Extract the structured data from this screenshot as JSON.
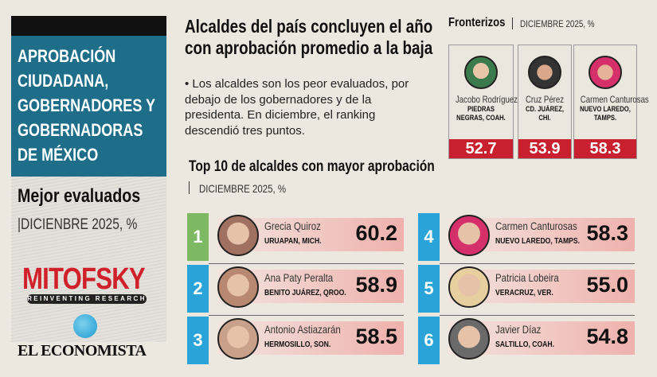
{
  "left_panel": {
    "title_lines": [
      "APROBACIÓN",
      "CIUDADANA,",
      "GOBERNADORES Y",
      "GOBERNADORAS",
      "DE MÉXICO"
    ],
    "subtitle": "Mejor evaluados",
    "period": "|DICIENBRE 2025, %",
    "logo_mitofsky": "MITOFSKY",
    "logo_mitofsky_tagline": "REINVENTING RESEARCH",
    "logo_publisher": "EL ECONOMISTA"
  },
  "article": {
    "headline_lines": [
      "Alcaldes del país concluyen el año",
      "con aprobación promedio a la baja"
    ],
    "body": "• Los alcaldes son los peor evaluados, por debajo de los gobernadores y de la presidenta. En diciembre, el ranking descendió tres puntos."
  },
  "fronterizos": {
    "title": "Fronterizos",
    "period": "DICIEMBRE 2025, %",
    "items": [
      {
        "name": "Jacobo Rodríguez",
        "city": "PIEDRAS NEGRAS, COAH.",
        "value": "52.7"
      },
      {
        "name": "Cruz Pérez",
        "city": "CD. JUÁREZ, CHI.",
        "value": "53.9"
      },
      {
        "name": "Carmen Canturosas",
        "city": "NUEVO LAREDO, TAMPS.",
        "value": "58.3"
      }
    ]
  },
  "top10": {
    "title": "Top 10 de alcaldes con mayor aprobación",
    "period": "DICIEMBRE 2025, %",
    "rank_colors": {
      "first": "#7db862",
      "others": "#2aa3d8"
    },
    "items": [
      {
        "rank": "1",
        "name": "Grecia Quiroz",
        "city": "URUAPAN, MICH.",
        "value": "60.2"
      },
      {
        "rank": "2",
        "name": "Ana Paty Peralta",
        "city": "BENITO JUÁREZ, QROO.",
        "value": "58.9"
      },
      {
        "rank": "3",
        "name": "Antonio Astiazarán",
        "city": "HERMOSILLO, SON.",
        "value": "58.5"
      },
      {
        "rank": "4",
        "name": "Carmen Canturosas",
        "city": "NUEVO LAREDO, TAMPS.",
        "value": "58.3"
      },
      {
        "rank": "5",
        "name": "Patricia Lobeira",
        "city": "VERACRUZ, VER.",
        "value": "55.0"
      },
      {
        "rank": "6",
        "name": "Javier Díaz",
        "city": "SALTILLO, COAH.",
        "value": "54.8"
      }
    ]
  }
}
